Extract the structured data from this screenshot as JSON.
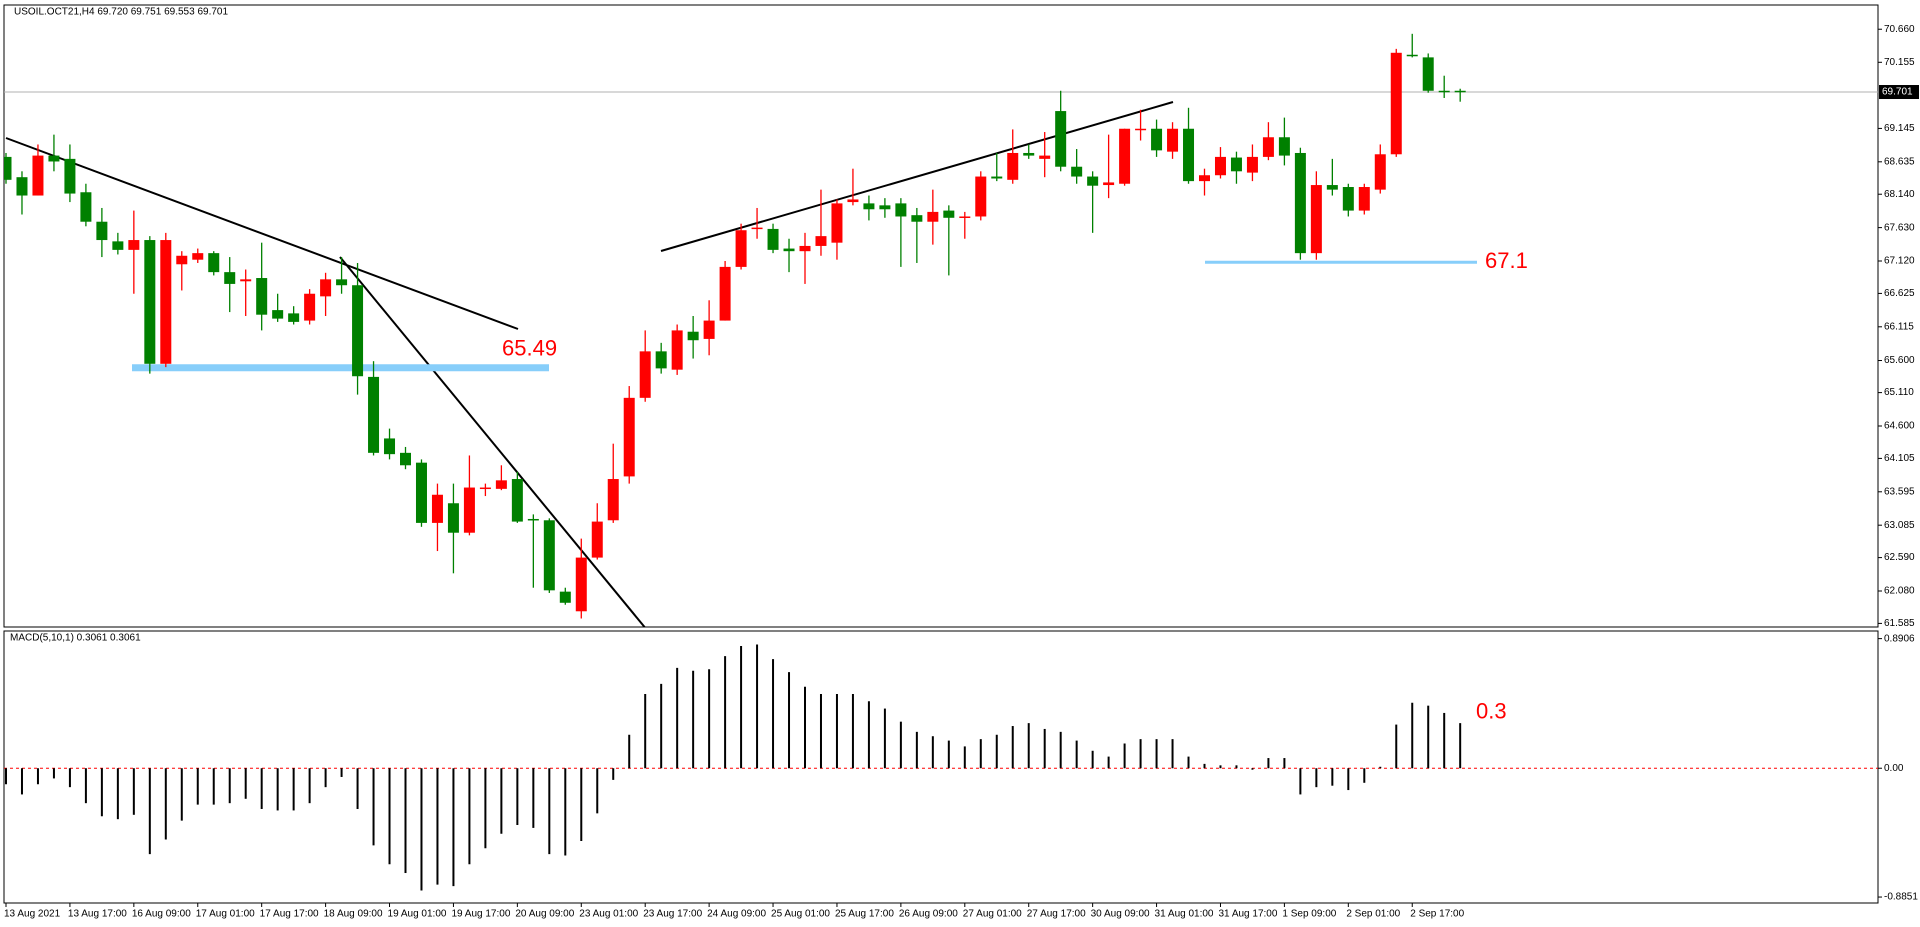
{
  "chart_data": [
    {
      "type": "candlestick",
      "title": "USOIL.OCT21,H4 69.720 69.751 69.553 69.701",
      "categories": [
        "13 Aug 2021",
        null,
        null,
        null,
        "13 Aug 17:00",
        null,
        null,
        null,
        "16 Aug 09:00",
        null,
        null,
        null,
        "17 Aug 01:00",
        null,
        null,
        null,
        "17 Aug 17:00",
        null,
        null,
        null,
        "18 Aug 09:00",
        null,
        null,
        null,
        "19 Aug 01:00",
        null,
        null,
        null,
        "19 Aug 17:00",
        null,
        null,
        null,
        "20 Aug 09:00",
        null,
        null,
        null,
        "23 Aug 01:00",
        null,
        null,
        null,
        "23 Aug 17:00",
        null,
        null,
        null,
        "24 Aug 09:00",
        null,
        null,
        null,
        "25 Aug 01:00",
        null,
        null,
        null,
        "25 Aug 17:00",
        null,
        null,
        null,
        "26 Aug 09:00",
        null,
        null,
        null,
        "27 Aug 01:00",
        null,
        null,
        null,
        "27 Aug 17:00",
        null,
        null,
        null,
        "30 Aug 09:00",
        null,
        null,
        null,
        "31 Aug 01:00",
        null,
        null,
        null,
        "31 Aug 17:00",
        null,
        null,
        null,
        "1 Sep 09:00",
        null,
        null,
        null,
        "2 Sep 01:00",
        null,
        null,
        null,
        "2 Sep 17:00",
        null,
        null,
        null
      ],
      "open": [
        68.71,
        68.4,
        68.12,
        68.73,
        68.68,
        68.17,
        67.72,
        67.42,
        67.29,
        67.44,
        65.55,
        67.07,
        67.14,
        67.24,
        66.95,
        66.81,
        66.86,
        66.37,
        66.32,
        66.21,
        66.58,
        66.84,
        66.75,
        65.35,
        64.41,
        64.19,
        64.04,
        63.12,
        63.42,
        62.97,
        63.64,
        63.64,
        63.79,
        63.18,
        63.16,
        62.07,
        61.77,
        62.59,
        63.16,
        63.83,
        65.03,
        65.74,
        65.46,
        66.04,
        65.93,
        66.21,
        67.03,
        67.61,
        67.61,
        67.31,
        67.27,
        67.35,
        67.4,
        68.02,
        68.0,
        67.97,
        68.0,
        67.82,
        67.72,
        67.89,
        67.78,
        67.8,
        68.41,
        68.36,
        68.77,
        68.68,
        69.41,
        68.56,
        68.41,
        68.28,
        68.3,
        69.13,
        69.14,
        68.79,
        69.14,
        68.34,
        68.43,
        68.7,
        68.47,
        68.71,
        69.01,
        68.77,
        67.24,
        68.28,
        68.25,
        67.89,
        68.21,
        68.75,
        70.27,
        70.23,
        69.72,
        69.72
      ],
      "high": [
        68.77,
        68.49,
        68.9,
        69.05,
        68.9,
        68.3,
        67.93,
        67.55,
        67.89,
        67.5,
        67.55,
        67.27,
        67.31,
        67.27,
        67.18,
        66.99,
        67.4,
        66.62,
        66.43,
        66.69,
        66.94,
        67.18,
        67.09,
        65.59,
        64.56,
        64.28,
        64.09,
        63.72,
        63.72,
        64.15,
        63.72,
        64.0,
        63.9,
        63.25,
        63.19,
        62.13,
        62.88,
        63.42,
        64.33,
        65.21,
        66.06,
        65.87,
        66.15,
        66.28,
        66.52,
        67.12,
        67.69,
        67.93,
        67.69,
        67.46,
        67.55,
        68.21,
        68.06,
        68.53,
        68.12,
        68.08,
        68.08,
        67.93,
        68.21,
        67.97,
        67.87,
        68.49,
        68.77,
        69.13,
        68.9,
        69.09,
        69.72,
        68.83,
        68.49,
        69.05,
        69.14,
        69.43,
        69.28,
        69.24,
        69.46,
        68.53,
        68.86,
        68.79,
        68.9,
        69.24,
        69.31,
        68.85,
        68.49,
        68.68,
        68.3,
        68.3,
        68.9,
        70.36,
        70.59,
        70.29,
        69.95,
        69.751
      ],
      "low": [
        68.3,
        67.83,
        68.12,
        68.49,
        68.02,
        67.65,
        67.18,
        67.22,
        66.62,
        65.4,
        65.5,
        66.67,
        67.09,
        66.9,
        66.34,
        66.28,
        66.06,
        66.19,
        66.15,
        66.15,
        66.28,
        66.62,
        65.08,
        64.15,
        64.09,
        63.94,
        63.06,
        62.69,
        62.35,
        62.93,
        63.53,
        63.62,
        63.12,
        62.13,
        62.05,
        61.87,
        61.66,
        62.56,
        63.12,
        63.72,
        64.97,
        65.4,
        65.38,
        65.63,
        65.68,
        66.21,
        66.99,
        67.46,
        67.24,
        66.95,
        66.77,
        67.2,
        67.14,
        67.97,
        67.74,
        67.78,
        67.03,
        67.09,
        67.37,
        66.9,
        67.46,
        67.74,
        68.34,
        68.3,
        68.68,
        68.4,
        68.49,
        68.3,
        67.55,
        68.08,
        68.27,
        68.96,
        68.71,
        68.68,
        68.3,
        68.12,
        68.38,
        68.3,
        68.34,
        68.66,
        68.58,
        67.14,
        67.14,
        68.12,
        67.8,
        67.83,
        68.15,
        68.71,
        70.23,
        69.69,
        69.61,
        69.553
      ],
      "close": [
        68.36,
        68.12,
        68.73,
        68.64,
        68.15,
        67.72,
        67.44,
        67.29,
        67.44,
        65.55,
        67.44,
        67.2,
        67.24,
        66.95,
        66.77,
        66.84,
        66.3,
        66.24,
        66.19,
        66.62,
        66.84,
        66.75,
        65.36,
        64.19,
        64.17,
        64.0,
        63.12,
        63.55,
        62.97,
        63.66,
        63.66,
        63.77,
        63.14,
        63.16,
        62.09,
        61.9,
        62.59,
        63.14,
        63.79,
        65.03,
        65.74,
        65.48,
        66.06,
        65.91,
        66.21,
        67.03,
        67.59,
        67.63,
        67.29,
        67.27,
        67.35,
        67.5,
        68.0,
        68.06,
        67.91,
        67.91,
        67.8,
        67.72,
        67.87,
        67.78,
        67.8,
        68.41,
        68.38,
        68.77,
        68.73,
        68.73,
        68.56,
        68.41,
        68.27,
        68.32,
        69.14,
        69.14,
        68.81,
        69.14,
        68.34,
        68.43,
        68.71,
        68.49,
        68.71,
        69.01,
        68.73,
        67.24,
        68.28,
        68.21,
        67.89,
        68.25,
        68.75,
        70.3,
        70.25,
        69.72,
        69.71,
        69.701
      ],
      "up_color": "#ff0000",
      "down_color": "#008000",
      "ylim": [
        61.53,
        71.03
      ],
      "yticks": [
        {
          "value": 70.66,
          "label": "70.660"
        },
        70.155,
        69.145,
        68.635,
        {
          "value": 68.14,
          "label": "68.140"
        },
        {
          "value": 67.63,
          "label": "67.630"
        },
        {
          "value": 67.12,
          "label": "67.120"
        },
        66.625,
        66.115,
        {
          "value": 65.6,
          "label": "65.600"
        },
        {
          "value": 65.11,
          "label": "65.110"
        },
        {
          "value": 64.6,
          "label": "64.600"
        },
        64.105,
        63.595,
        63.085,
        {
          "value": 62.59,
          "label": "62.590"
        },
        {
          "value": 62.08,
          "label": "62.080"
        },
        61.585
      ],
      "last_price": {
        "value": 69.701,
        "label": "69.701"
      },
      "annotations": [
        {
          "label": "65.49",
          "value": 65.49,
          "color": "#87cefa",
          "label_color": "#ff0000"
        },
        {
          "label": "67.1",
          "value": 67.1,
          "color": "#87cefa",
          "label_color": "#ff0000"
        }
      ]
    },
    {
      "type": "bar",
      "title": "MACD(5,10,1) 0.3061 0.3061",
      "values": [
        -0.11,
        -0.18,
        -0.11,
        -0.07,
        -0.13,
        -0.24,
        -0.33,
        -0.35,
        -0.32,
        -0.59,
        -0.49,
        -0.36,
        -0.25,
        -0.25,
        -0.24,
        -0.21,
        -0.28,
        -0.29,
        -0.29,
        -0.24,
        -0.13,
        -0.06,
        -0.28,
        -0.53,
        -0.66,
        -0.72,
        -0.84,
        -0.8,
        -0.81,
        -0.66,
        -0.55,
        -0.45,
        -0.39,
        -0.41,
        -0.59,
        -0.6,
        -0.5,
        -0.31,
        -0.08,
        0.23,
        0.51,
        0.58,
        0.69,
        0.67,
        0.68,
        0.77,
        0.84,
        0.85,
        0.75,
        0.66,
        0.56,
        0.51,
        0.51,
        0.51,
        0.46,
        0.41,
        0.32,
        0.25,
        0.22,
        0.19,
        0.15,
        0.2,
        0.23,
        0.29,
        0.31,
        0.27,
        0.25,
        0.19,
        0.12,
        0.08,
        0.17,
        0.2,
        0.2,
        0.2,
        0.08,
        0.03,
        0.02,
        0.02,
        -0.01,
        0.07,
        0.07,
        -0.18,
        -0.13,
        -0.12,
        -0.15,
        -0.1,
        0.01,
        0.3,
        0.45,
        0.43,
        0.38,
        0.31
      ],
      "color": "#000000",
      "zero_line_color": "#ff0000",
      "ylim": [
        -0.926,
        0.943
      ],
      "yticks": [
        0.8906,
        {
          "value": 0,
          "label": "0.00"
        },
        -0.8851
      ],
      "annotations": [
        {
          "label": "0.3",
          "value": 0.3,
          "label_color": "#ff0000"
        }
      ]
    }
  ]
}
